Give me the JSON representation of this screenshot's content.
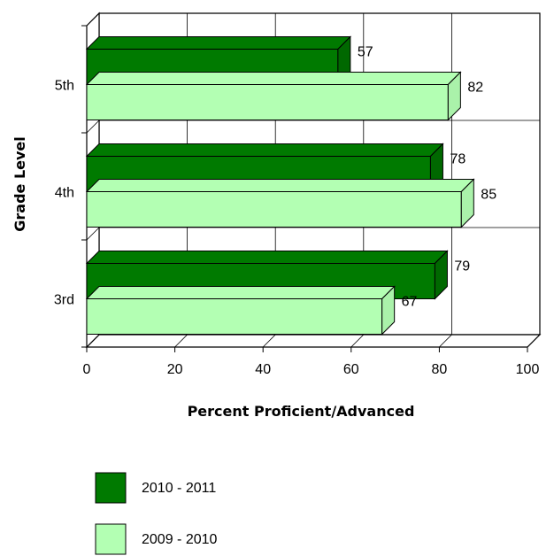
{
  "chart_data": {
    "type": "bar",
    "orientation": "horizontal",
    "three_d": true,
    "categories": [
      "5th",
      "4th",
      "3rd"
    ],
    "series": [
      {
        "name": "2010 - 2011",
        "values": [
          57,
          78,
          79
        ],
        "color": "#007a00"
      },
      {
        "name": "2009 - 2010",
        "values": [
          82,
          85,
          67
        ],
        "color": "#b3ffb3"
      }
    ],
    "xlabel": "Percent Proficient/Advanced",
    "ylabel": "Grade Level",
    "xlim": [
      0,
      100
    ],
    "xticks": [
      0,
      20,
      40,
      60,
      80,
      100
    ],
    "grid": true,
    "legend_position": "bottom-left"
  }
}
